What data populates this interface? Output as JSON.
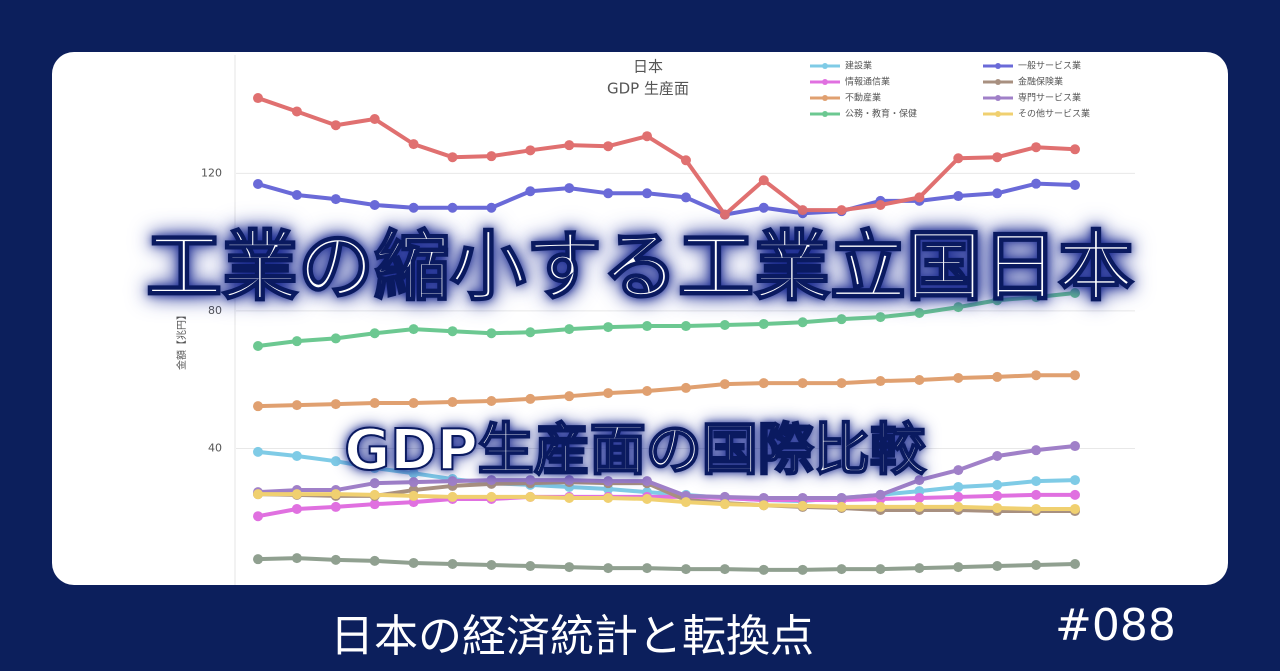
{
  "chart_data": {
    "type": "line",
    "title": "日本",
    "subtitle": "GDP 生産面",
    "y_label": "金額【兆円】",
    "categories": [
      null,
      null,
      null,
      null,
      null,
      null,
      null,
      null,
      null,
      null,
      null,
      null,
      null,
      null,
      null,
      null,
      null,
      null,
      null,
      null,
      null,
      null
    ],
    "ylim": [
      0,
      155
    ],
    "yticks": [
      40,
      80,
      120
    ],
    "grid": true,
    "series": [
      {
        "name": "建設業",
        "color": "#7fcbe6",
        "values": [
          39,
          37.8,
          36.3,
          34.3,
          32.8,
          31.1,
          29.9,
          29.4,
          28.8,
          28.2,
          27.3,
          26.5,
          25.6,
          25,
          24.7,
          25.6,
          26.5,
          27.6,
          28.8,
          29.4,
          30.5,
          30.8
        ]
      },
      {
        "name": "一般サービス業",
        "color": "#6a6ad8",
        "values": [
          116.9,
          113.7,
          112.5,
          110.8,
          110,
          110,
          110,
          114.8,
          115.7,
          114.2,
          114.2,
          113,
          108,
          110,
          108.4,
          109,
          112,
          112,
          113.4,
          114.2,
          117,
          116.6
        ]
      },
      {
        "name": "情報通信業",
        "color": "#e070e0",
        "values": [
          20.3,
          22.4,
          23,
          23.8,
          24.4,
          25.3,
          25.3,
          25.9,
          25.9,
          25.9,
          25.9,
          25.9,
          25.6,
          25,
          25,
          25,
          25.3,
          25.6,
          25.9,
          26.2,
          26.5,
          26.5
        ]
      },
      {
        "name": "金融保険業",
        "color": "#a89080",
        "values": [
          26.7,
          26.5,
          26.2,
          26.2,
          27.9,
          29.1,
          29.7,
          29.9,
          30.2,
          29.9,
          29.9,
          25,
          24.1,
          23.5,
          23,
          22.7,
          22.1,
          22.1,
          22.1,
          21.8,
          21.8,
          21.8
        ]
      },
      {
        "name": "不動産業",
        "color": "#e0a070",
        "values": [
          52.3,
          52.6,
          52.9,
          53.2,
          53.2,
          53.5,
          53.8,
          54.4,
          55.2,
          56.1,
          56.7,
          57.6,
          58.7,
          59,
          59,
          59,
          59.6,
          59.9,
          60.5,
          60.8,
          61.3,
          61.3
        ]
      },
      {
        "name": "専門サービス業",
        "color": "#a080c8",
        "values": [
          27.3,
          27.9,
          27.9,
          29.9,
          30.2,
          30.5,
          30.8,
          30.8,
          30.8,
          30.5,
          30.5,
          26.2,
          25.9,
          25.6,
          25.6,
          25.6,
          26.5,
          30.8,
          33.7,
          37.8,
          39.5,
          40.7
        ]
      },
      {
        "name": "公務・教育・保健",
        "color": "#6cc891",
        "values": [
          69.8,
          71.2,
          72,
          73.5,
          74.7,
          74.1,
          73.5,
          73.8,
          74.7,
          75.3,
          75.6,
          75.6,
          75.9,
          76.2,
          76.7,
          77.6,
          78.2,
          79.4,
          81.1,
          83.1,
          84,
          85.2
        ]
      },
      {
        "name": "その他サービス業",
        "color": "#f0d070",
        "values": [
          26.7,
          26.7,
          26.7,
          26.5,
          26.2,
          25.9,
          25.9,
          25.9,
          25.6,
          25.6,
          25.3,
          24.4,
          23.8,
          23.5,
          23.3,
          23,
          23,
          23,
          23,
          22.7,
          22.4,
          22.4
        ]
      },
      {
        "color": "#e07070",
        "values": [
          141.9,
          138,
          134,
          135.8,
          128.5,
          124.7,
          125,
          126.7,
          128.2,
          127.9,
          130.8,
          123.8,
          108,
          118,
          109.3,
          109.3,
          110.8,
          113,
          124.4,
          124.7,
          127.6,
          127
        ]
      },
      {
        "color": "#90a090",
        "values": [
          7.8,
          8.1,
          7.6,
          7.3,
          6.7,
          6.4,
          6.1,
          5.8,
          5.5,
          5.2,
          5.2,
          4.9,
          4.9,
          4.7,
          4.7,
          4.9,
          4.9,
          5.2,
          5.5,
          5.8,
          6.1,
          6.4
        ]
      }
    ]
  },
  "overlay": {
    "headline": "工業の縮小する工業立国日本",
    "subheadline": "GDP生産面の国際比較"
  },
  "footer": {
    "series_title": "日本の経済統計と転換点",
    "episode": "#088"
  }
}
